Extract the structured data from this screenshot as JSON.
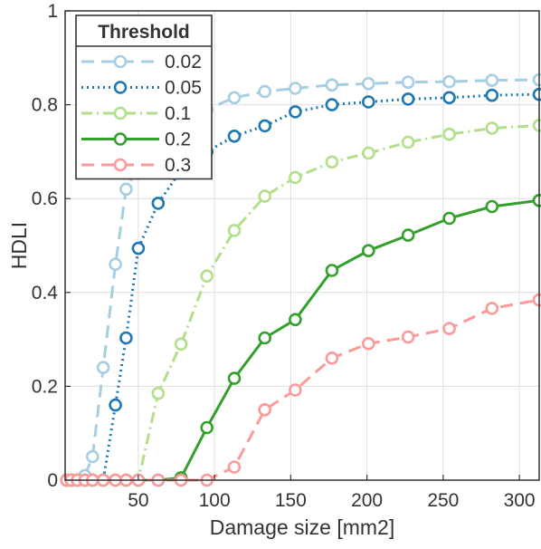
{
  "chart_data": {
    "type": "line",
    "title": "",
    "xlabel": "Damage size [mm2]",
    "ylabel": "HDLI",
    "xlim": [
      2,
      313
    ],
    "ylim": [
      0,
      1
    ],
    "xticks": [
      50,
      100,
      150,
      200,
      250,
      300
    ],
    "yticks": [
      0,
      0.2,
      0.4,
      0.6,
      0.8,
      1
    ],
    "ytick_labels": [
      "0",
      "0.2",
      "0.4",
      "0.6",
      "0.8",
      "1"
    ],
    "grid": true,
    "legend": {
      "title": "Threshold",
      "placement": "top-left"
    },
    "x": [
      3,
      6,
      10,
      15,
      20,
      27,
      35,
      42,
      50,
      63,
      78,
      95,
      113,
      133,
      153,
      177,
      201,
      227,
      254,
      282,
      313
    ],
    "series": [
      {
        "name": "0.02",
        "color": "#a6cee3",
        "dash": "dashed",
        "values": [
          0,
          0,
          0,
          0.01,
          0.05,
          0.24,
          0.46,
          0.62,
          0.67,
          0.72,
          0.76,
          0.79,
          0.815,
          0.828,
          0.835,
          0.842,
          0.845,
          0.848,
          0.849,
          0.852,
          0.853
        ]
      },
      {
        "name": "0.05",
        "color": "#1f78b4",
        "dash": "dotted",
        "values": [
          0,
          0,
          0,
          0,
          0,
          0,
          0.16,
          0.303,
          0.494,
          0.59,
          0.66,
          0.7,
          0.733,
          0.755,
          0.785,
          0.8,
          0.806,
          0.812,
          0.815,
          0.82,
          0.822
        ]
      },
      {
        "name": "0.1",
        "color": "#b2df8a",
        "dash": "dashdot",
        "values": [
          0,
          0,
          0,
          0,
          0,
          0,
          0,
          0,
          0,
          0.185,
          0.29,
          0.435,
          0.532,
          0.605,
          0.645,
          0.678,
          0.697,
          0.72,
          0.737,
          0.75,
          0.756
        ]
      },
      {
        "name": "0.2",
        "color": "#33a02c",
        "dash": "solid",
        "values": [
          0,
          0,
          0,
          0,
          0,
          0,
          0,
          0,
          0,
          0,
          0.005,
          0.112,
          0.217,
          0.303,
          0.342,
          0.447,
          0.489,
          0.522,
          0.558,
          0.583,
          0.596
        ]
      },
      {
        "name": "0.3",
        "color": "#fb9a99",
        "dash": "dashed",
        "values": [
          0,
          0,
          0,
          0,
          0,
          0,
          0,
          0,
          0,
          0,
          0,
          0,
          0.028,
          0.15,
          0.192,
          0.26,
          0.291,
          0.305,
          0.323,
          0.366,
          0.384
        ]
      }
    ]
  }
}
